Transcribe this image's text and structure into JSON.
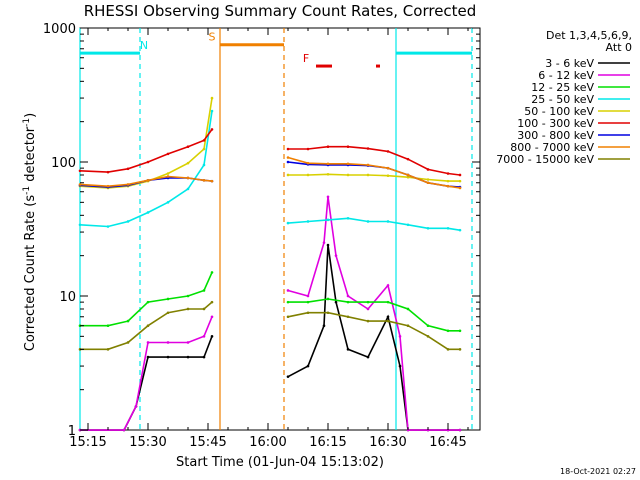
{
  "chart_data": {
    "type": "line",
    "title": "RHESSI Observing Summary Count Rates, Corrected",
    "xlabel": "Start Time (01-Jun-04 15:13:02)",
    "ylabel": "Corrected Count Rate (s⁻¹ detector⁻¹)",
    "ylabel_main": "Corrected Count Rate (s",
    "ylabel_sup1": "-1",
    "ylabel_mid": " detector",
    "ylabel_sup2": "-1",
    "ylabel_close": ")",
    "yscale": "log",
    "ylim": [
      1,
      1000
    ],
    "xlim": [
      "15:13",
      "16:53"
    ],
    "x_ticks": [
      "15:15",
      "15:30",
      "15:45",
      "16:00",
      "16:15",
      "16:30",
      "16:45"
    ],
    "y_ticks": [
      "1",
      "10",
      "100",
      "1000"
    ],
    "legend_header": [
      "Det 1,3,4,5,6,9,",
      "Att 0"
    ],
    "legend_position": "right",
    "footer": "18-Oct-2021 02:27",
    "data_gap": [
      "15:47",
      "16:05"
    ],
    "series": [
      {
        "name": "3 - 6 keV",
        "color": "#000000",
        "x": [
          "15:13",
          "15:24",
          "15:27",
          "15:30",
          "15:35",
          "15:40",
          "15:44",
          "15:46",
          "16:05",
          "16:10",
          "16:14",
          "16:15",
          "16:17",
          "16:20",
          "16:25",
          "16:30",
          "16:33",
          "16:35",
          "16:40",
          "16:45",
          "16:48"
        ],
        "y": [
          0.8,
          0.8,
          1.5,
          3.5,
          3.5,
          3.5,
          3.5,
          5,
          2.5,
          3,
          6,
          24,
          9,
          4,
          3.5,
          7,
          3,
          1,
          0.8,
          0.8,
          0.8
        ]
      },
      {
        "name": "6 - 12 keV",
        "color": "#e000e0",
        "x": [
          "15:13",
          "15:24",
          "15:27",
          "15:30",
          "15:35",
          "15:40",
          "15:44",
          "15:46",
          "16:05",
          "16:10",
          "16:14",
          "16:15",
          "16:17",
          "16:20",
          "16:25",
          "16:30",
          "16:33",
          "16:35",
          "16:40",
          "16:45",
          "16:48"
        ],
        "y": [
          0.8,
          0.8,
          1.5,
          4.5,
          4.5,
          4.5,
          5,
          7,
          11,
          10,
          25,
          55,
          20,
          10,
          8,
          12,
          5,
          0.8,
          0.8,
          0.8,
          0.8
        ]
      },
      {
        "name": "12 - 25 keV",
        "color": "#00e000",
        "x": [
          "15:13",
          "15:20",
          "15:25",
          "15:30",
          "15:35",
          "15:40",
          "15:44",
          "15:46",
          "16:05",
          "16:10",
          "16:15",
          "16:20",
          "16:25",
          "16:30",
          "16:35",
          "16:40",
          "16:45",
          "16:48"
        ],
        "y": [
          6,
          6,
          6.5,
          9,
          9.5,
          10,
          11,
          15,
          9,
          9,
          9.5,
          9,
          9,
          9,
          8,
          6,
          5.5,
          5.5
        ]
      },
      {
        "name": "25 - 50 keV",
        "color": "#00e8e8",
        "x": [
          "15:13",
          "15:20",
          "15:25",
          "15:30",
          "15:35",
          "15:40",
          "15:44",
          "15:46",
          "16:05",
          "16:10",
          "16:15",
          "16:20",
          "16:25",
          "16:30",
          "16:35",
          "16:40",
          "16:45",
          "16:48"
        ],
        "y": [
          34,
          33,
          36,
          42,
          50,
          63,
          95,
          240,
          35,
          36,
          37,
          38,
          36,
          36,
          34,
          32,
          32,
          31
        ]
      },
      {
        "name": "50 - 100 keV",
        "color": "#d8d000",
        "x": [
          "15:13",
          "15:20",
          "15:25",
          "15:30",
          "15:35",
          "15:40",
          "15:44",
          "15:46",
          "16:05",
          "16:10",
          "16:15",
          "16:20",
          "16:25",
          "16:30",
          "16:35",
          "16:40",
          "16:45",
          "16:48"
        ],
        "y": [
          66,
          64,
          66,
          72,
          82,
          98,
          125,
          300,
          80,
          80,
          81,
          80,
          80,
          79,
          77,
          74,
          72,
          72
        ]
      },
      {
        "name": "100 - 300 keV",
        "color": "#e00000",
        "x": [
          "15:13",
          "15:20",
          "15:25",
          "15:30",
          "15:35",
          "15:40",
          "15:44",
          "15:46",
          "16:05",
          "16:10",
          "16:15",
          "16:20",
          "16:25",
          "16:30",
          "16:35",
          "16:40",
          "16:45",
          "16:48"
        ],
        "y": [
          86,
          84,
          89,
          100,
          115,
          130,
          145,
          175,
          125,
          125,
          130,
          130,
          126,
          120,
          105,
          88,
          82,
          80
        ]
      },
      {
        "name": "300 - 800 keV",
        "color": "#0000e0",
        "x": [
          "15:13",
          "15:20",
          "15:25",
          "15:30",
          "15:35",
          "15:40",
          "15:44",
          "15:46",
          "16:05",
          "16:10",
          "16:15",
          "16:20",
          "16:25",
          "16:30",
          "16:35",
          "16:40",
          "16:45",
          "16:48"
        ],
        "y": [
          67,
          65,
          67,
          73,
          76,
          76,
          73,
          72,
          100,
          96,
          95,
          95,
          94,
          90,
          80,
          70,
          66,
          65
        ]
      },
      {
        "name": "800 - 7000 keV",
        "color": "#f08000",
        "x": [
          "15:13",
          "15:20",
          "15:25",
          "15:30",
          "15:35",
          "15:40",
          "15:44",
          "15:46",
          "16:05",
          "16:10",
          "16:15",
          "16:20",
          "16:25",
          "16:30",
          "16:35",
          "16:40",
          "16:45",
          "16:48"
        ],
        "y": [
          68,
          66,
          68,
          73,
          78,
          76,
          73,
          72,
          108,
          98,
          97,
          97,
          95,
          90,
          80,
          70,
          66,
          64
        ]
      },
      {
        "name": "7000 - 15000 keV",
        "color": "#808000",
        "x": [
          "15:13",
          "15:20",
          "15:25",
          "15:30",
          "15:35",
          "15:40",
          "15:44",
          "15:46",
          "16:05",
          "16:10",
          "16:15",
          "16:20",
          "16:25",
          "16:30",
          "16:35",
          "16:40",
          "16:45",
          "16:48"
        ],
        "y": [
          4,
          4,
          4.5,
          6,
          7.5,
          8,
          8,
          9,
          7,
          7.5,
          7.5,
          7,
          6.5,
          6.5,
          6,
          5,
          4,
          4
        ]
      }
    ],
    "markers": [
      {
        "label": "N",
        "color": "#00e8e8",
        "start": "15:13",
        "end": "15:28",
        "level": 650
      },
      {
        "label": "",
        "color": "#00e8e8",
        "start": "16:32",
        "end": "16:51",
        "level": 650
      },
      {
        "label": "S",
        "color": "#f08000",
        "start": "15:48",
        "end": "16:04",
        "level": 750
      },
      {
        "label": "F",
        "color": "#e00000",
        "start": "16:12",
        "end": "16:16",
        "level": 520
      },
      {
        "label": "",
        "color": "#e00000",
        "start": "16:27",
        "end": "16:28",
        "level": 520
      }
    ]
  }
}
